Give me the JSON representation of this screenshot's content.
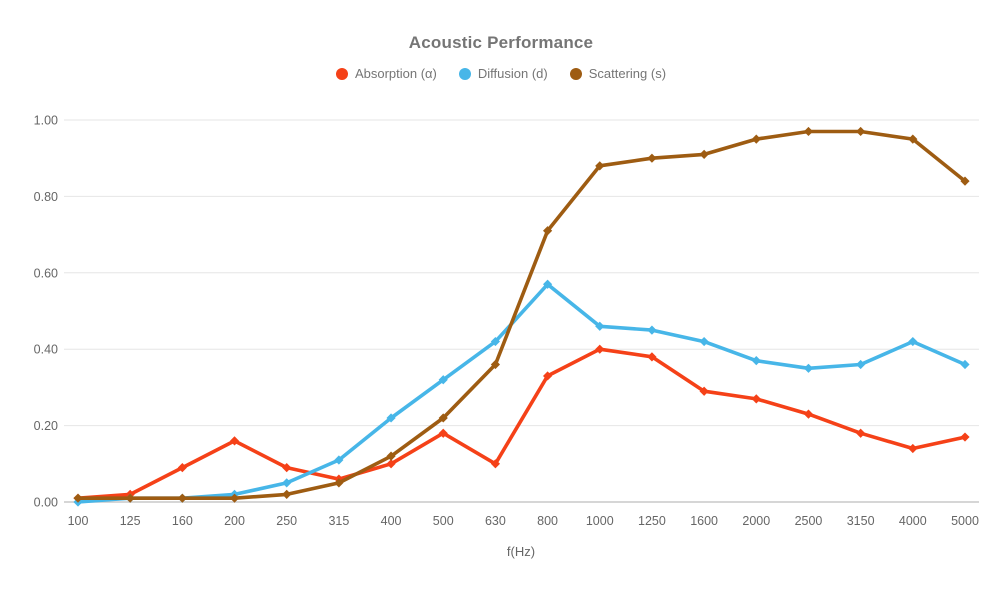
{
  "header": {
    "title": "Acoustic Performance"
  },
  "chart_data": {
    "type": "line",
    "title": "Acoustic Performance",
    "xlabel": "f(Hz)",
    "ylabel": "",
    "ylim": [
      0,
      1
    ],
    "ytick_step": 0.2,
    "ytick_labels": [
      "0.00",
      "0.20",
      "0.40",
      "0.60",
      "0.80",
      "1.00"
    ],
    "grid": true,
    "legend_position": "top",
    "categories": [
      "100",
      "125",
      "160",
      "200",
      "250",
      "315",
      "400",
      "500",
      "630",
      "800",
      "1000",
      "1250",
      "1600",
      "2000",
      "2500",
      "3150",
      "4000",
      "5000"
    ],
    "series": [
      {
        "name": "Absorption (α)",
        "color": "#f54118",
        "values": [
          0.01,
          0.02,
          0.09,
          0.16,
          0.09,
          0.06,
          0.1,
          0.18,
          0.1,
          0.33,
          0.4,
          0.38,
          0.29,
          0.27,
          0.23,
          0.18,
          0.14,
          0.17
        ]
      },
      {
        "name": "Diffusion (d)",
        "color": "#47b6e8",
        "values": [
          0.0,
          0.01,
          0.01,
          0.02,
          0.05,
          0.11,
          0.22,
          0.32,
          0.42,
          0.57,
          0.46,
          0.45,
          0.42,
          0.37,
          0.35,
          0.36,
          0.42,
          0.36
        ]
      },
      {
        "name": "Scattering (s)",
        "color": "#9e5c12",
        "values": [
          0.01,
          0.01,
          0.01,
          0.01,
          0.02,
          0.05,
          0.12,
          0.22,
          0.36,
          0.71,
          0.88,
          0.9,
          0.91,
          0.95,
          0.97,
          0.97,
          0.95,
          0.84
        ]
      }
    ]
  },
  "style": {
    "grid_color": "#e6e6e6",
    "axis_line_color": "#c9c9c9",
    "tick_color": "#666666",
    "title_color": "#757575"
  }
}
